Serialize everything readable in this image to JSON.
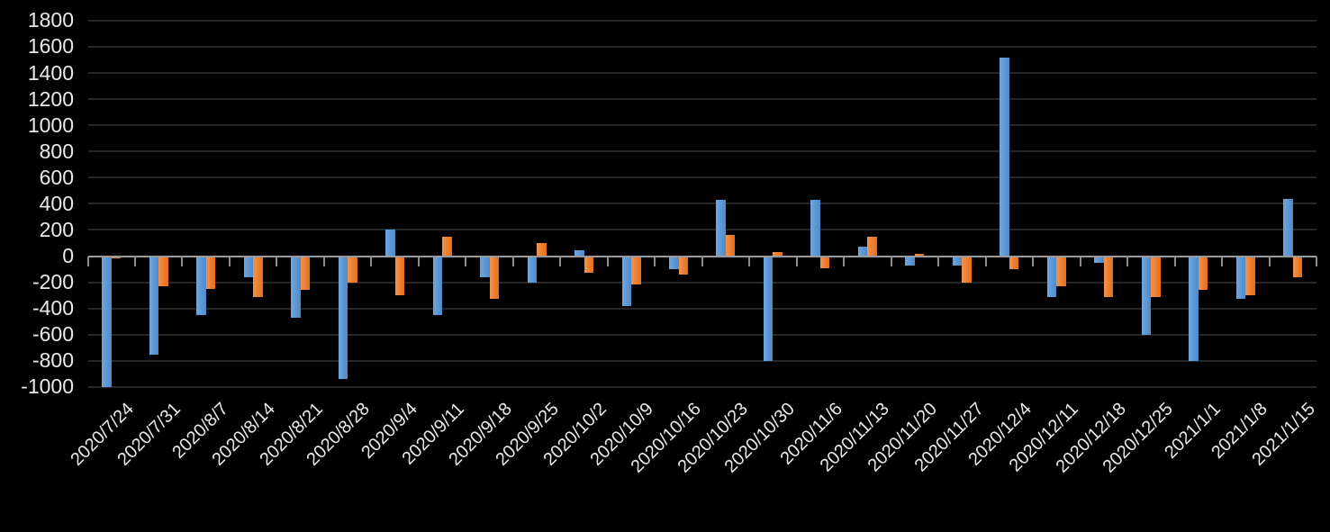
{
  "chart_data": {
    "type": "bar",
    "title": "",
    "xlabel": "",
    "ylabel": "",
    "background_color": "#000000",
    "text_color": "#e9e9e9",
    "gridline_color": "#262626",
    "axis_color": "#9a9a9a",
    "grid": true,
    "legend": "none",
    "ylim": [
      -1000,
      1800
    ],
    "y_step": 200,
    "y_tick_labels": [
      "1800",
      "1600",
      "1400",
      "1200",
      "1000",
      "800",
      "600",
      "400",
      "200",
      "0",
      "-200",
      "-400",
      "-600",
      "-800",
      "-1000"
    ],
    "categories": [
      "2020/7/24",
      "2020/7/31",
      "2020/8/7",
      "2020/8/14",
      "2020/8/21",
      "2020/8/28",
      "2020/9/4",
      "2020/9/11",
      "2020/9/18",
      "2020/9/25",
      "2020/10/2",
      "2020/10/9",
      "2020/10/16",
      "2020/10/23",
      "2020/10/30",
      "2020/11/6",
      "2020/11/13",
      "2020/11/20",
      "2020/11/27",
      "2020/12/4",
      "2020/12/11",
      "2020/12/18",
      "2020/12/25",
      "2021/1/1",
      "2021/1/8",
      "2021/1/15"
    ],
    "series": [
      {
        "name": "blue-series",
        "color": "#5B9BD5",
        "values": [
          -1000,
          -750,
          -450,
          -160,
          -470,
          -940,
          200,
          -450,
          -160,
          -200,
          45,
          -380,
          -100,
          430,
          -800,
          430,
          70,
          -70,
          -70,
          1520,
          -310,
          -50,
          -600,
          -800,
          -330,
          440
        ]
      },
      {
        "name": "orange-series",
        "color": "#ED7D31",
        "values": [
          -20,
          -230,
          -250,
          -310,
          -260,
          -200,
          -300,
          150,
          -330,
          100,
          -130,
          -220,
          -140,
          160,
          30,
          -90,
          150,
          20,
          -200,
          -100,
          -230,
          -310,
          -310,
          -260,
          -300,
          -160
        ]
      }
    ]
  }
}
